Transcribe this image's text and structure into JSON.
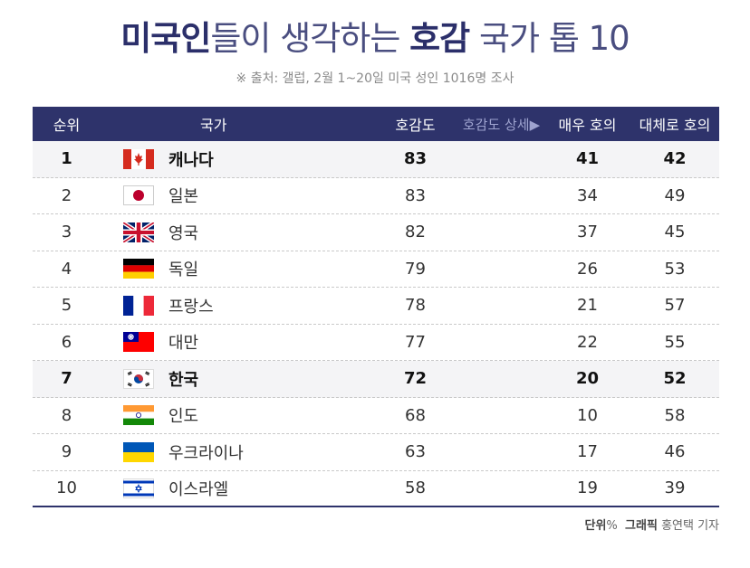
{
  "title": {
    "part1": "미국인",
    "part2": "들이 생각하는 ",
    "part3": "호감",
    "part4": " 국가 톱 10"
  },
  "subtitle": "※ 출처: 갤럽, 2월 1~20일 미국 성인 1016명 조사",
  "table": {
    "headers": {
      "rank": "순위",
      "country": "국가",
      "score": "호감도",
      "detail": "호감도 상세▶",
      "very": "매우 호의",
      "somewhat": "대체로 호의"
    },
    "rows": [
      {
        "rank": "1",
        "country": "캐나다",
        "flag": "canada-flag-icon",
        "score": "83",
        "very": "41",
        "somewhat": "42"
      },
      {
        "rank": "2",
        "country": "일본",
        "flag": "japan-flag-icon",
        "score": "83",
        "very": "34",
        "somewhat": "49"
      },
      {
        "rank": "3",
        "country": "영국",
        "flag": "uk-flag-icon",
        "score": "82",
        "very": "37",
        "somewhat": "45"
      },
      {
        "rank": "4",
        "country": "독일",
        "flag": "germany-flag-icon",
        "score": "79",
        "very": "26",
        "somewhat": "53"
      },
      {
        "rank": "5",
        "country": "프랑스",
        "flag": "france-flag-icon",
        "score": "78",
        "very": "21",
        "somewhat": "57"
      },
      {
        "rank": "6",
        "country": "대만",
        "flag": "taiwan-flag-icon",
        "score": "77",
        "very": "22",
        "somewhat": "55"
      },
      {
        "rank": "7",
        "country": "한국",
        "flag": "korea-flag-icon",
        "score": "72",
        "very": "20",
        "somewhat": "52"
      },
      {
        "rank": "8",
        "country": "인도",
        "flag": "india-flag-icon",
        "score": "68",
        "very": "10",
        "somewhat": "58"
      },
      {
        "rank": "9",
        "country": "우크라이나",
        "flag": "ukraine-flag-icon",
        "score": "63",
        "very": "17",
        "somewhat": "46"
      },
      {
        "rank": "10",
        "country": "이스라엘",
        "flag": "israel-flag-icon",
        "score": "58",
        "very": "19",
        "somewhat": "39"
      }
    ]
  },
  "footer": {
    "unit_label": "단위",
    "unit": "%",
    "graphic_label": "그래픽",
    "graphic_credit": "홍연택 기자"
  },
  "colors": {
    "header_bg": "#2e336b",
    "title": "#2b2f6a"
  }
}
